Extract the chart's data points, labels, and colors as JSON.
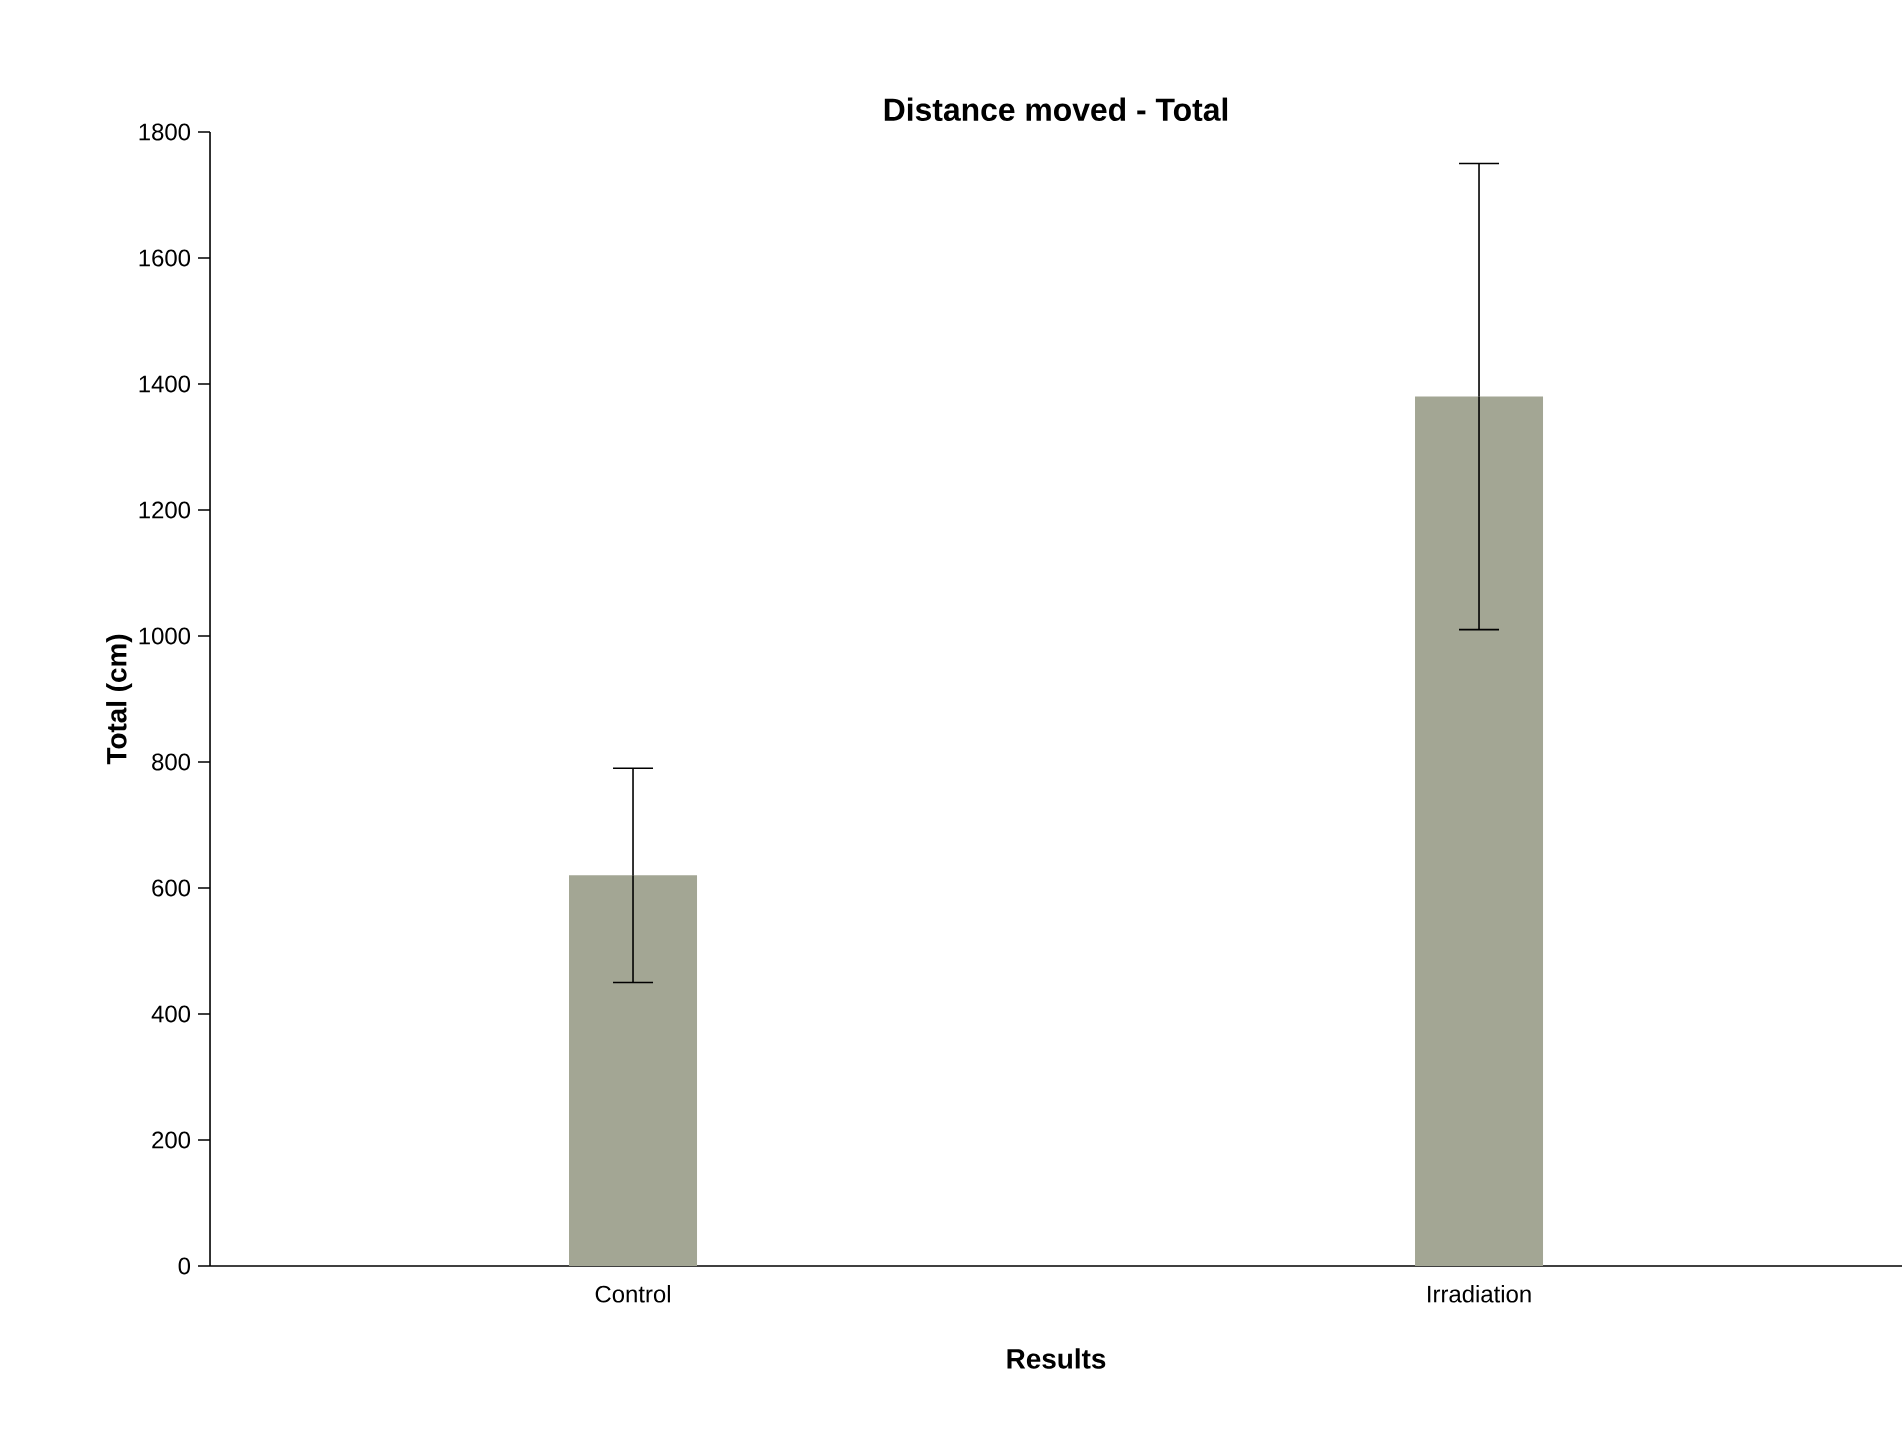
{
  "chart_data": {
    "type": "bar",
    "title": "Distance moved - Total",
    "xlabel": "Results",
    "ylabel": "Total (cm)",
    "categories": [
      "Control",
      "Irradiation"
    ],
    "values": [
      620,
      1380
    ],
    "errors": [
      170,
      370
    ],
    "color": "#a3a694",
    "ylim": [
      0,
      1800
    ],
    "yticks": [
      0,
      200,
      400,
      600,
      800,
      1000,
      1200,
      1400,
      1600,
      1800
    ],
    "grid": false
  }
}
